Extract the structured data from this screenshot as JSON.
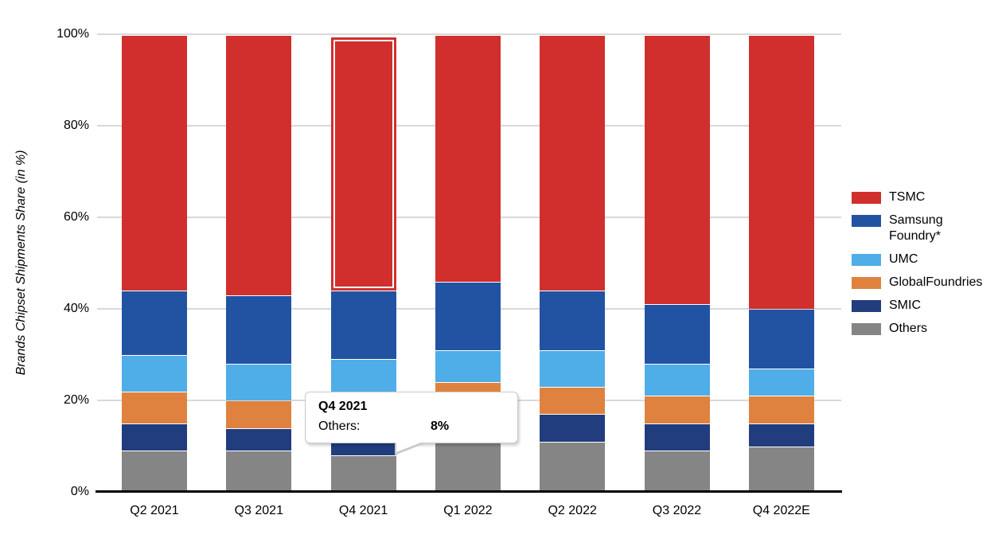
{
  "chart_data": {
    "type": "bar",
    "stacked": true,
    "title": "",
    "xlabel": "",
    "ylabel": "Brands Chipset Shipments Share (in %)",
    "ylim": [
      0,
      100
    ],
    "y_ticks": [
      "0%",
      "20%",
      "40%",
      "60%",
      "80%",
      "100%"
    ],
    "grid": true,
    "legend_position": "right",
    "categories": [
      "Q2 2021",
      "Q3 2021",
      "Q4 2021",
      "Q1 2022",
      "Q2 2022",
      "Q3 2022",
      "Q4 2022E"
    ],
    "series": [
      {
        "name": "TSMC",
        "color": "#d02f2d",
        "values": [
          56,
          57,
          56,
          54,
          56,
          59,
          60
        ]
      },
      {
        "name": "Samsung Foundry*",
        "color": "#2253a3",
        "values": [
          14,
          15,
          15,
          15,
          13,
          13,
          13
        ]
      },
      {
        "name": "UMC",
        "color": "#4fade8",
        "values": [
          8,
          8,
          8,
          7,
          8,
          7,
          6
        ]
      },
      {
        "name": "GlobalFoundries",
        "color": "#e0823f",
        "values": [
          7,
          6,
          7,
          7,
          6,
          6,
          6
        ]
      },
      {
        "name": "SMIC",
        "color": "#223d7e",
        "values": [
          6,
          5,
          6,
          6,
          6,
          6,
          5
        ]
      },
      {
        "name": "Others",
        "color": "#858585",
        "values": [
          9,
          9,
          8,
          11,
          11,
          9,
          10
        ]
      }
    ],
    "highlight": {
      "category": "Q4 2021",
      "series": "TSMC"
    }
  },
  "tooltip": {
    "title": "Q4 2021",
    "label": "Others:",
    "value": "8%"
  },
  "colors": {
    "background": "#ffffff",
    "gridline": "#d9d9d9",
    "axis": "#000000",
    "tooltip_border": "#c9c9c9"
  }
}
